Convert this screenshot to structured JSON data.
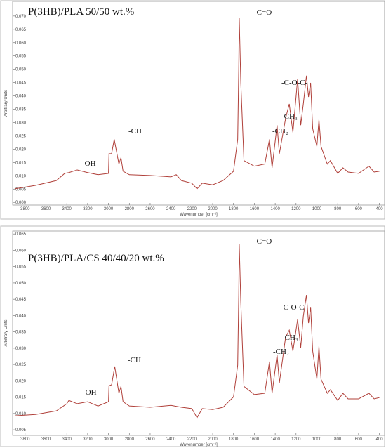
{
  "chart_data": [
    {
      "type": "line",
      "title": "P(3HB)/PLA 50/50 wt.%",
      "xlabel": "Wavenumber [cm⁻¹]",
      "ylabel": "Arbitrary Units",
      "color": "#b0403a",
      "grid": false,
      "x": [
        3900,
        3700,
        3500,
        3420,
        3380,
        3300,
        3200,
        3100,
        3000,
        2995,
        2970,
        2945,
        2900,
        2880,
        2860,
        2800,
        2600,
        2400,
        2350,
        2300,
        2200,
        2150,
        2100,
        2000,
        1900,
        1800,
        1760,
        1750,
        1745,
        1730,
        1700,
        1600,
        1500,
        1455,
        1430,
        1382,
        1360,
        1300,
        1265,
        1230,
        1185,
        1155,
        1130,
        1100,
        1080,
        1060,
        1040,
        1000,
        980,
        960,
        900,
        870,
        800,
        750,
        700,
        600,
        500,
        450,
        400
      ],
      "values": [
        0.0051,
        0.0064,
        0.0082,
        0.0109,
        0.0112,
        0.0122,
        0.0112,
        0.0104,
        0.0109,
        0.0183,
        0.0183,
        0.0237,
        0.0144,
        0.0168,
        0.0117,
        0.0104,
        0.0101,
        0.0096,
        0.0104,
        0.0082,
        0.0072,
        0.0051,
        0.0072,
        0.0066,
        0.0082,
        0.0117,
        0.0237,
        0.0503,
        0.0694,
        0.045,
        0.0157,
        0.0136,
        0.0144,
        0.0237,
        0.013,
        0.029,
        0.0183,
        0.0316,
        0.037,
        0.0263,
        0.0463,
        0.029,
        0.037,
        0.0476,
        0.0396,
        0.0449,
        0.0277,
        0.021,
        0.0311,
        0.021,
        0.0144,
        0.0157,
        0.0109,
        0.013,
        0.0114,
        0.0109,
        0.0136,
        0.0114,
        0.0117
      ],
      "xlim": [
        3920,
        350
      ],
      "ylim": [
        -0.001,
        0.0755
      ],
      "xticks": [
        3800,
        3600,
        3400,
        3200,
        3000,
        2800,
        2600,
        2400,
        2200,
        2000,
        1800,
        1600,
        1400,
        1200,
        1000,
        800,
        600,
        400
      ],
      "yticks": [
        {
          "value": 0,
          "label": "0.000"
        },
        0.005,
        {
          "value": 0.01,
          "label": "0.010"
        },
        0.015,
        {
          "value": 0.02,
          "label": "0.020"
        },
        0.025,
        {
          "value": 0.03,
          "label": "0.030"
        },
        0.035,
        {
          "value": 0.04,
          "label": "0.040"
        },
        0.045,
        {
          "value": 0.05,
          "label": "0.050"
        },
        0.055,
        {
          "value": 0.06,
          "label": "0.060"
        },
        0.065,
        {
          "value": 0.07,
          "label": "0.070"
        }
      ],
      "annotations": [
        "-OH",
        "-CH",
        "-C=O",
        "-CH₂",
        "-CH₃",
        "-C-O-C-"
      ]
    },
    {
      "type": "line",
      "title": "P(3HB)/PLA/CS 40/40/20 wt.%",
      "xlabel": "Wavenumber [cm⁻¹]",
      "ylabel": "Arbitrary Units",
      "color": "#b0403a",
      "grid": false,
      "x": [
        3900,
        3700,
        3500,
        3400,
        3380,
        3300,
        3200,
        3100,
        3000,
        2995,
        2970,
        2940,
        2900,
        2880,
        2860,
        2800,
        2600,
        2400,
        2300,
        2200,
        2150,
        2100,
        2000,
        1900,
        1800,
        1760,
        1750,
        1745,
        1730,
        1700,
        1600,
        1500,
        1455,
        1430,
        1382,
        1360,
        1300,
        1265,
        1230,
        1185,
        1155,
        1130,
        1100,
        1080,
        1060,
        1040,
        1000,
        980,
        960,
        900,
        870,
        800,
        750,
        700,
        600,
        500,
        450,
        400
      ],
      "values": [
        0.0093,
        0.0097,
        0.0108,
        0.013,
        0.014,
        0.013,
        0.0136,
        0.0123,
        0.0136,
        0.0185,
        0.0188,
        0.0244,
        0.0162,
        0.0183,
        0.0136,
        0.0123,
        0.0119,
        0.0125,
        0.0119,
        0.0115,
        0.0087,
        0.0115,
        0.0112,
        0.0119,
        0.0151,
        0.0248,
        0.0463,
        0.0618,
        0.0441,
        0.0183,
        0.0158,
        0.0162,
        0.0259,
        0.0162,
        0.028,
        0.0194,
        0.0334,
        0.0355,
        0.0291,
        0.0388,
        0.0302,
        0.0398,
        0.0463,
        0.0377,
        0.0426,
        0.0291,
        0.0205,
        0.0306,
        0.0205,
        0.0162,
        0.0173,
        0.014,
        0.0162,
        0.0145,
        0.0145,
        0.0162,
        0.0145,
        0.0149
      ],
      "xlim": [
        3920,
        350
      ],
      "ylim": [
        0.0033,
        0.0659
      ],
      "xticks": [
        3800,
        3600,
        3400,
        3200,
        3000,
        2800,
        2600,
        2400,
        2200,
        2000,
        1800,
        1600,
        1400,
        1200,
        1000,
        800,
        600,
        400
      ],
      "yticks": [
        0.005,
        {
          "value": 0.01,
          "label": "0.010"
        },
        0.015,
        {
          "value": 0.02,
          "label": "0.020"
        },
        0.025,
        {
          "value": 0.03,
          "label": "0.030"
        },
        0.035,
        {
          "value": 0.04,
          "label": "0.040"
        },
        0.045,
        {
          "value": 0.05,
          "label": "0.050"
        },
        0.055,
        {
          "value": 0.06,
          "label": "0.060"
        },
        0.065
      ],
      "annotations": [
        "-OH",
        "-CH",
        "-C=O",
        "-CH₂",
        "-CH₃",
        "-C-O-C-"
      ]
    }
  ]
}
